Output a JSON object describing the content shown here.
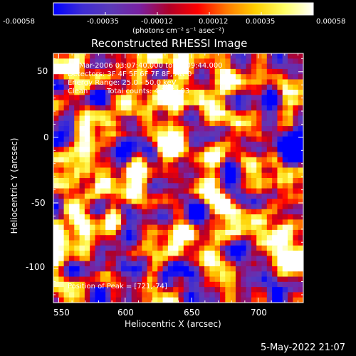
{
  "colorbar": {
    "ticks": [
      "-0.00058",
      "-0.00035",
      "-0.00012",
      "0.00012",
      "0.00035",
      "0.00058"
    ],
    "unit_label": "(photons cm⁻² s⁻¹ asec⁻²)",
    "colormap_stops": [
      "#0000ff",
      "#3e2cd4",
      "#5b3ab8",
      "#7a20a0",
      "#b00028",
      "#ff0000",
      "#ff7a00",
      "#ffd000",
      "#ffff66",
      "#ffffff"
    ]
  },
  "image": {
    "title": "Reconstructed RHESSI Image",
    "time_range": "22-Mar-2006 03:07:40.000 to 03:09:44.000",
    "detectors": "Detectors: 3F 4F 5F 6F 7F 8F, Att 0",
    "energy_range": "Energy Range: 25.0 - 50.0 keV",
    "algorithm": "Clean",
    "total_counts": "Total counts: 4.31E+03",
    "peak_position": "Position of Peak = [721,-74]",
    "peak_x": 721,
    "peak_y": -74
  },
  "x_axis": {
    "label": "Heliocentric X (arcsec)",
    "range": [
      546,
      734
    ],
    "ticks": [
      "550",
      "600",
      "650",
      "700"
    ]
  },
  "y_axis": {
    "label": "Heliocentric Y (arcsec)",
    "range": [
      -126,
      64
    ],
    "ticks": [
      "50",
      "0",
      "-50",
      "-100"
    ]
  },
  "footer": {
    "timestamp": "5-May-2022 21:07"
  }
}
